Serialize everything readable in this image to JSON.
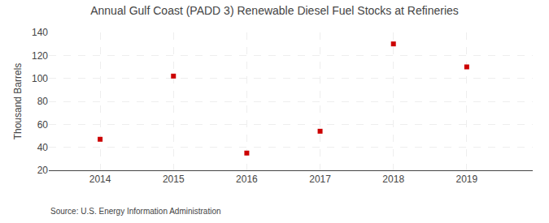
{
  "chart_data": {
    "type": "scatter",
    "title": "Annual Gulf Coast (PADD 3) Renewable Diesel Fuel Stocks at Refineries",
    "ylabel": "Thousand Barrels",
    "annotations": [
      "Source: U.S. Energy Information Administration"
    ],
    "x": [
      2014,
      2015,
      2016,
      2017,
      2018,
      2019
    ],
    "values": [
      47,
      102,
      35,
      54,
      130,
      110
    ],
    "color": "#cc0000",
    "marker": "square",
    "xlim": [
      2013.3,
      2019.9
    ],
    "xticks": [
      2014,
      2015,
      2016,
      2017,
      2018,
      2019
    ],
    "ylim": [
      20,
      140
    ],
    "yticks": [
      20,
      40,
      60,
      80,
      100,
      120,
      140
    ],
    "grid": true
  }
}
